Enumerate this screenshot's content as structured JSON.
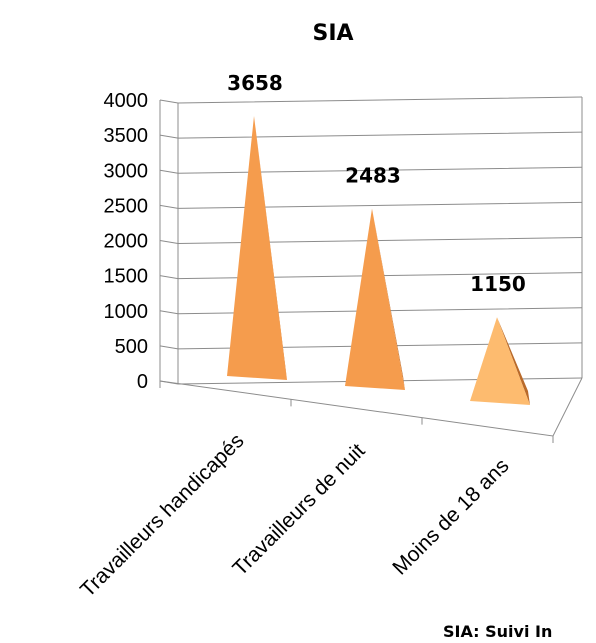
{
  "chart_data": {
    "type": "bar",
    "title": "SIA",
    "categories": [
      "Travailleurs handicapés",
      "Travailleurs de nuit",
      "Moins de 18 ans"
    ],
    "values": [
      3658,
      2483,
      1150
    ],
    "data_labels": [
      "3658",
      "2483",
      "1150"
    ],
    "ylim": [
      0,
      4000
    ],
    "yticks": [
      "0",
      "500",
      "1000",
      "1500",
      "2000",
      "2500",
      "3000",
      "3500",
      "4000"
    ],
    "xlabel": "",
    "ylabel": "",
    "grid": true,
    "legend": "none",
    "shape": "3d-pyramid",
    "colors": {
      "light_face": "#fdbb6f",
      "mid_face": "#f59c4d",
      "dark_face": "#b96a2a",
      "grid": "#8c8c8c"
    }
  },
  "footnote": "SIA: Suivi In"
}
